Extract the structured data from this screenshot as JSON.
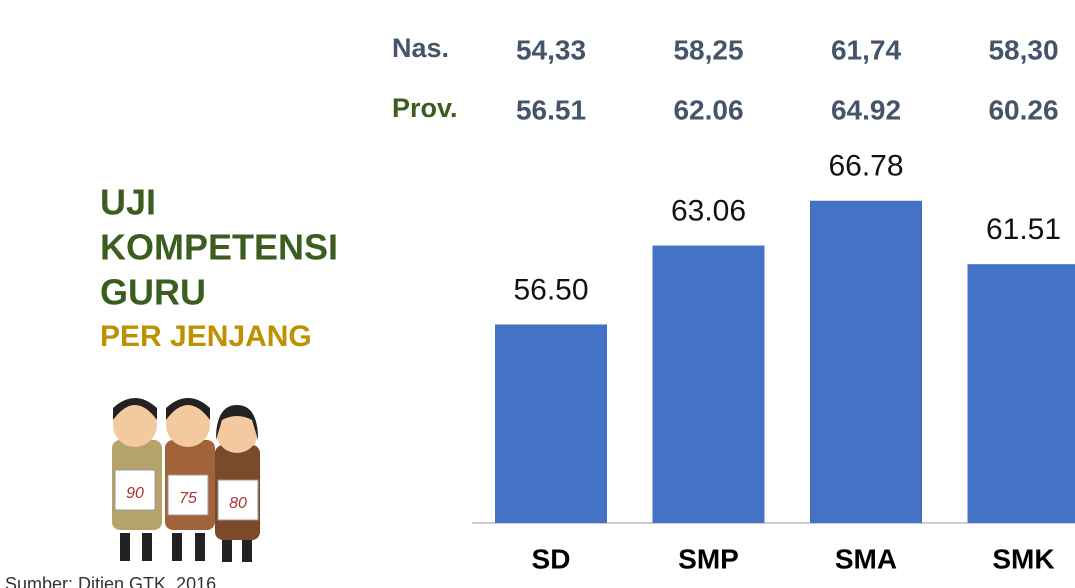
{
  "chart_data": {
    "type": "bar",
    "title_lines": [
      "UJI",
      "KOMPETENSI",
      "GURU"
    ],
    "subtitle": "PER JENJANG",
    "source": "Sumber: Ditjen GTK, 2016",
    "categories": [
      "SD",
      "SMP",
      "SMA",
      "SMK"
    ],
    "values": [
      56.5,
      63.06,
      66.78,
      61.51
    ],
    "value_labels": [
      "56.50",
      "63.06",
      "66.78",
      "61.51"
    ],
    "color": "#4472c4",
    "ylim": [
      40,
      70
    ],
    "rows": [
      {
        "label": "Nas.",
        "values": [
          "54,33",
          "58,25",
          "61,74",
          "58,30"
        ]
      },
      {
        "label": "Prov.",
        "values": [
          "56.51",
          "62.06",
          "64.92",
          "60.26"
        ]
      }
    ],
    "illustration_labels": [
      "90",
      "75",
      "80"
    ]
  }
}
